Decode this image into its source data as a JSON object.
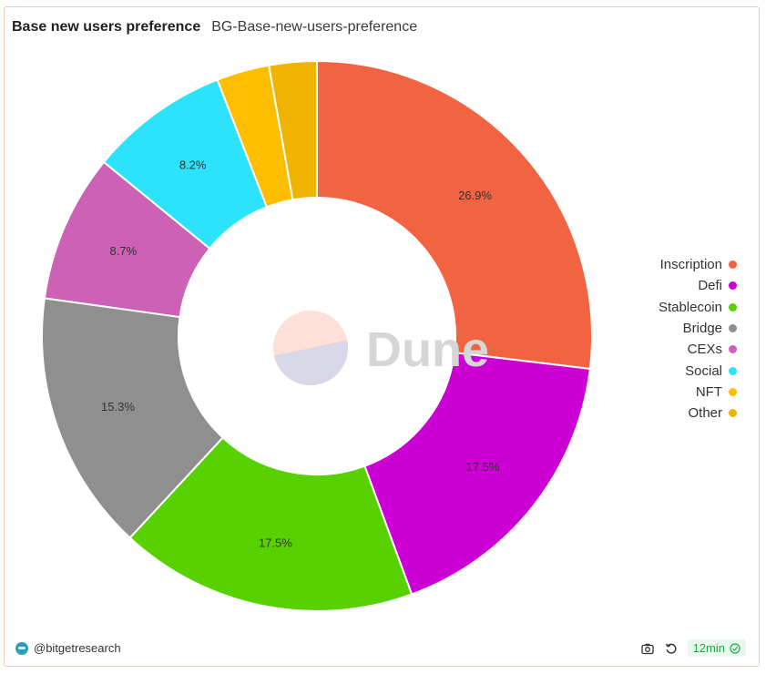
{
  "header": {
    "title": "Base new users preference",
    "subtitle": "BG-Base-new-users-preference"
  },
  "chart_data": {
    "type": "pie",
    "donut": true,
    "legend_position": "right",
    "slices": [
      {
        "label": "Inscription",
        "value": 26.9,
        "display": "26.9%",
        "color": "#f26341"
      },
      {
        "label": "Defi",
        "value": 17.5,
        "display": "17.5%",
        "color": "#cc00d4"
      },
      {
        "label": "Stablecoin",
        "value": 17.5,
        "display": "17.5%",
        "color": "#58d100"
      },
      {
        "label": "Bridge",
        "value": 15.3,
        "display": "15.3%",
        "color": "#8f8f8f"
      },
      {
        "label": "CEXs",
        "value": 8.7,
        "display": "8.7%",
        "color": "#cc61b5"
      },
      {
        "label": "Social",
        "value": 8.2,
        "display": "8.2%",
        "color": "#2de3fb"
      },
      {
        "label": "NFT",
        "value": 3.1,
        "display": "",
        "color": "#ffbe00"
      },
      {
        "label": "Other",
        "value": 2.8,
        "display": "",
        "color": "#f0b400"
      }
    ]
  },
  "watermark": {
    "text": "Dune"
  },
  "footer": {
    "author": "@bitgetresearch",
    "refresh_age": "12min"
  },
  "icons": {
    "camera": "camera-icon",
    "refresh": "refresh-icon",
    "check": "check-circle-icon"
  }
}
